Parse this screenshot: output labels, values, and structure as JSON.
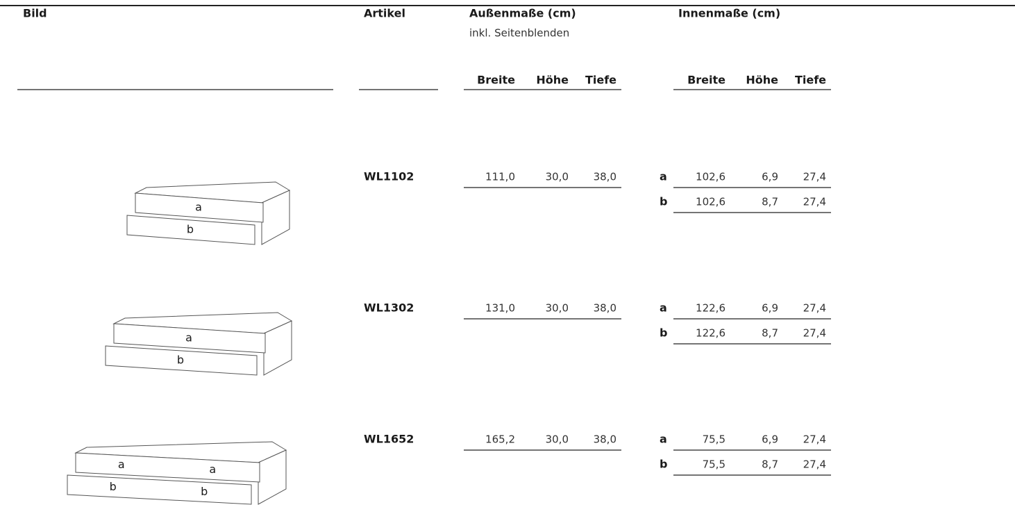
{
  "header": {
    "image": "Bild",
    "article": "Artikel",
    "outer": "Außenmaße (cm)",
    "outer_note": "inkl. Seitenblenden",
    "inner": "Innenmaße (cm)",
    "outer_columns": [
      "Breite",
      "Höhe",
      "Tiefe"
    ],
    "inner_columns": [
      "Breite",
      "Höhe",
      "Tiefe"
    ]
  },
  "rows": [
    {
      "article": "WL1102",
      "outer": [
        "111,0",
        "30,0",
        "38,0"
      ],
      "inner": [
        {
          "drawer": "a",
          "values": [
            "102,6",
            "6,9",
            "27,4"
          ]
        },
        {
          "drawer": "b",
          "values": [
            "102,6",
            "8,7",
            "27,4"
          ]
        }
      ],
      "drawing_labels": [
        "a",
        "b"
      ]
    },
    {
      "article": "WL1302",
      "outer": [
        "131,0",
        "30,0",
        "38,0"
      ],
      "inner": [
        {
          "drawer": "a",
          "values": [
            "122,6",
            "6,9",
            "27,4"
          ]
        },
        {
          "drawer": "b",
          "values": [
            "122,6",
            "8,7",
            "27,4"
          ]
        }
      ],
      "drawing_labels": [
        "a",
        "b"
      ]
    },
    {
      "article": "WL1652",
      "outer": [
        "165,2",
        "30,0",
        "38,0"
      ],
      "inner": [
        {
          "drawer": "a",
          "values": [
            "75,5",
            "6,9",
            "27,4"
          ]
        },
        {
          "drawer": "b",
          "values": [
            "75,5",
            "8,7",
            "27,4"
          ]
        }
      ],
      "drawing_labels": [
        "a",
        "a",
        "b",
        "b"
      ]
    }
  ]
}
